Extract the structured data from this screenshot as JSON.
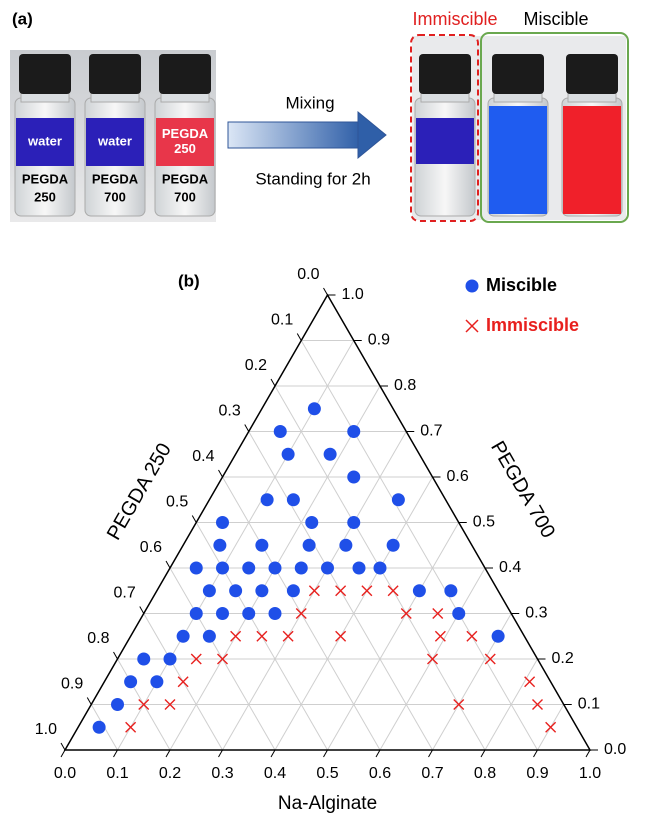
{
  "panel_a": {
    "label": "(a)",
    "vials": [
      {
        "top": [
          "water"
        ],
        "bottom": [
          "PEGDA",
          "250"
        ]
      },
      {
        "top": [
          "water"
        ],
        "bottom": [
          "PEGDA",
          "700"
        ]
      },
      {
        "top": [
          "PEGDA",
          "250"
        ],
        "bottom": [
          "PEGDA",
          "700"
        ]
      }
    ],
    "arrow_top": "Mixing",
    "arrow_bottom": "Standing for 2h",
    "immiscible": "Immiscible",
    "miscible": "Miscible"
  },
  "chart_data": {
    "type": "ternary",
    "label": "(b)",
    "xlabel": "Na-Alginate",
    "ylabel": "PEGDA 700",
    "zlabel": "PEGDA 250",
    "ticks": [
      {
        "value": 0,
        "label": "0.0"
      },
      0.1,
      0.2,
      0.3,
      0.4,
      0.5,
      0.6,
      0.7,
      0.8,
      0.9,
      {
        "value": 1,
        "label": "1.0"
      }
    ],
    "grid": true,
    "legend": "top-right",
    "series": [
      {
        "name": "Miscible",
        "color": "#1f4fe8",
        "marker": "circle",
        "x": [
          0.1,
          0.06,
          0.2,
          0.1,
          0.18,
          0.25,
          0.11,
          0.16,
          0.36,
          0.05,
          0.22,
          0.3,
          0.07,
          0.15,
          0.24,
          0.31,
          0.4,
          0.05,
          0.1,
          0.15,
          0.2,
          0.25,
          0.3,
          0.36,
          0.4,
          0.1,
          0.15,
          0.2,
          0.26,
          0.5,
          0.56,
          0.1,
          0.15,
          0.2,
          0.25,
          0.6,
          0.1,
          0.15,
          0.7,
          0.05,
          0.1,
          0.05,
          0.1,
          0.05,
          0.04
        ],
        "y": [
          0.75,
          0.7,
          0.7,
          0.65,
          0.65,
          0.6,
          0.55,
          0.55,
          0.55,
          0.5,
          0.5,
          0.5,
          0.45,
          0.45,
          0.45,
          0.45,
          0.45,
          0.4,
          0.4,
          0.4,
          0.4,
          0.4,
          0.4,
          0.4,
          0.4,
          0.35,
          0.35,
          0.35,
          0.35,
          0.35,
          0.35,
          0.3,
          0.3,
          0.3,
          0.3,
          0.3,
          0.25,
          0.25,
          0.25,
          0.2,
          0.2,
          0.15,
          0.15,
          0.1,
          0.05
        ]
      },
      {
        "name": "Immiscible",
        "color": "#e8201e",
        "marker": "x",
        "x": [
          0.3,
          0.35,
          0.4,
          0.45,
          0.3,
          0.5,
          0.56,
          0.2,
          0.25,
          0.3,
          0.4,
          0.59,
          0.65,
          0.15,
          0.2,
          0.6,
          0.71,
          0.15,
          0.81,
          0.1,
          0.15,
          0.7,
          0.85,
          0.1,
          0.9
        ],
        "y": [
          0.35,
          0.35,
          0.35,
          0.35,
          0.3,
          0.3,
          0.3,
          0.25,
          0.25,
          0.25,
          0.25,
          0.25,
          0.25,
          0.2,
          0.2,
          0.2,
          0.2,
          0.15,
          0.15,
          0.1,
          0.1,
          0.1,
          0.1,
          0.05,
          0.05
        ]
      }
    ]
  }
}
